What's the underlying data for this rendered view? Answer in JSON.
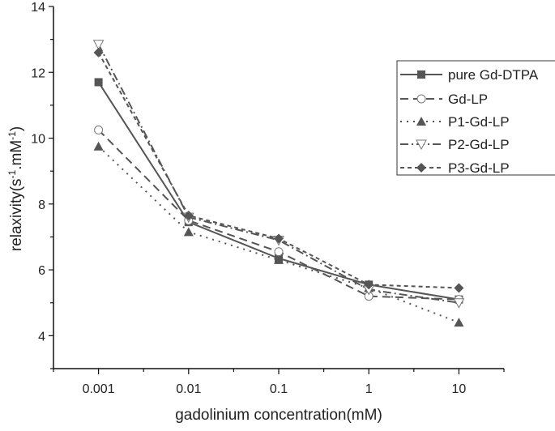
{
  "chart_data": {
    "type": "line",
    "title": "",
    "xlabel": "gadolinium concentration(mM)",
    "ylabel": "relaxivity(s⁻¹.mM⁻¹)",
    "ylabel_parts": {
      "base": "relaxivity(s",
      "sup1": "-1",
      "mid": ".mM",
      "sup2": "-1",
      "end": ")"
    },
    "categories": [
      "0.001",
      "0.01",
      "0.1",
      "1",
      "10"
    ],
    "x_scale": "log (categorical ticks)",
    "ylim": [
      3,
      14
    ],
    "yticks": [
      4,
      6,
      8,
      10,
      12,
      14
    ],
    "grid": false,
    "legend_position": "top-right",
    "series": [
      {
        "name": "pure Gd-DTPA",
        "marker": "filled-square",
        "line": "solid",
        "values": [
          11.7,
          7.45,
          6.35,
          5.55,
          5.1
        ]
      },
      {
        "name": "Gd-LP",
        "marker": "open-circle",
        "line": "dash",
        "values": [
          10.25,
          7.5,
          6.55,
          5.2,
          5.1
        ]
      },
      {
        "name": "P1-Gd-LP",
        "marker": "filled-triangle-up",
        "line": "dot",
        "values": [
          9.75,
          7.15,
          6.3,
          5.45,
          4.4
        ]
      },
      {
        "name": "P2-Gd-LP",
        "marker": "open-triangle-down",
        "line": "dash-dot",
        "values": [
          12.85,
          7.6,
          6.9,
          5.4,
          5.0
        ]
      },
      {
        "name": "P3-Gd-LP",
        "marker": "filled-diamond",
        "line": "short-dash",
        "values": [
          12.6,
          7.65,
          6.95,
          5.55,
          5.45
        ]
      }
    ],
    "colors": {
      "line": "#555555",
      "axis": "#111111"
    }
  }
}
